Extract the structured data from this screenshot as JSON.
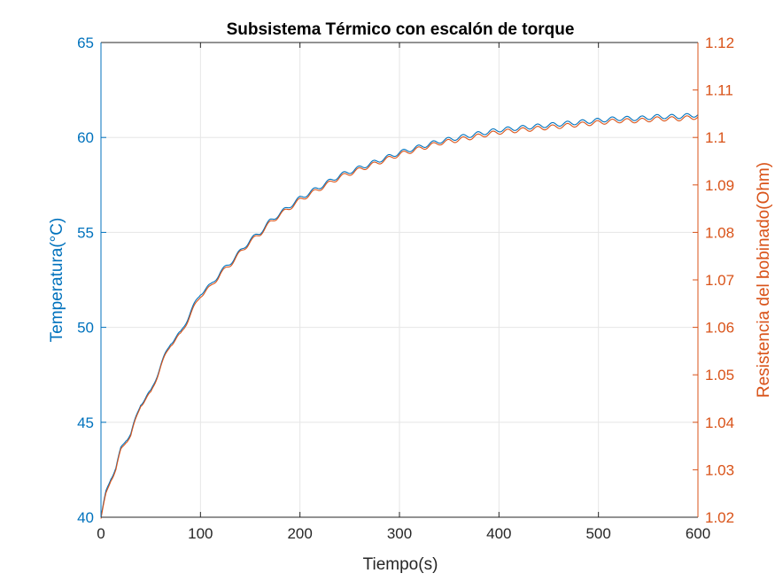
{
  "chart_data": {
    "type": "line",
    "title": "Subsistema Térmico con escalón de torque",
    "xlabel": "Tiempo(s)",
    "ylabel_left": "Temperatura(°C)",
    "ylabel_right": "Resistencia del bobinado(Ohm)",
    "xlim": [
      0,
      600
    ],
    "ylim_left": [
      40,
      65
    ],
    "ylim_right": [
      1.02,
      1.12
    ],
    "x_ticks": [
      "0",
      "100",
      "200",
      "300",
      "400",
      "500",
      "600"
    ],
    "y_ticks_left": [
      "40",
      "45",
      "50",
      "55",
      "60",
      "65"
    ],
    "y_ticks_right": [
      "1.02",
      "1.03",
      "1.04",
      "1.05",
      "1.06",
      "1.07",
      "1.08",
      "1.09",
      "1.1",
      "1.11",
      "1.12"
    ],
    "grid": true,
    "colors": {
      "temperature": "#0072BD",
      "resistance": "#D95319",
      "axes": "#262626",
      "grid": "#e6e6e6"
    },
    "series": [
      {
        "axis": "left",
        "color": "#0072BD",
        "x": [
          0,
          5,
          10,
          15,
          20,
          25,
          30,
          40,
          50,
          60,
          70,
          80,
          90,
          100,
          110,
          120,
          130,
          140,
          150,
          160,
          170,
          180,
          190,
          200,
          220,
          240,
          260,
          280,
          300,
          320,
          340,
          360,
          380,
          400,
          420,
          440,
          460,
          480,
          500,
          520,
          540,
          560,
          580,
          600
        ],
        "values": [
          40.0,
          41.3,
          42.1,
          42.6,
          43.6,
          44.1,
          44.4,
          46.0,
          46.6,
          48.0,
          49.2,
          49.7,
          50.8,
          51.8,
          52.2,
          52.9,
          53.4,
          54.0,
          54.6,
          55.0,
          55.6,
          56.0,
          56.4,
          56.8,
          57.4,
          58.0,
          58.4,
          58.8,
          59.2,
          59.5,
          59.8,
          60.0,
          60.2,
          60.4,
          60.5,
          60.6,
          60.7,
          60.8,
          60.9,
          61.0,
          61.0,
          61.1,
          61.1,
          61.2
        ]
      },
      {
        "axis": "right",
        "color": "#D95319",
        "x": [
          0,
          5,
          10,
          15,
          20,
          25,
          30,
          40,
          50,
          60,
          70,
          80,
          90,
          100,
          110,
          120,
          130,
          140,
          150,
          160,
          170,
          180,
          190,
          200,
          220,
          240,
          260,
          280,
          300,
          320,
          340,
          360,
          380,
          400,
          420,
          440,
          460,
          480,
          500,
          520,
          540,
          560,
          580,
          600
        ],
        "values": [
          1.02,
          1.025,
          1.0283,
          1.0303,
          1.0343,
          1.0363,
          1.0375,
          1.044,
          1.0463,
          1.052,
          1.0567,
          1.0587,
          1.063,
          1.067,
          1.0687,
          1.0715,
          1.0735,
          1.076,
          1.0783,
          1.08,
          1.0823,
          1.084,
          1.0855,
          1.0871,
          1.0895,
          1.0919,
          1.0935,
          1.0951,
          1.0967,
          1.0979,
          1.0991,
          1.0998,
          1.1006,
          1.1014,
          1.1018,
          1.1022,
          1.1026,
          1.103,
          1.1034,
          1.1038,
          1.1038,
          1.1042,
          1.1042,
          1.1046
        ]
      }
    ]
  }
}
